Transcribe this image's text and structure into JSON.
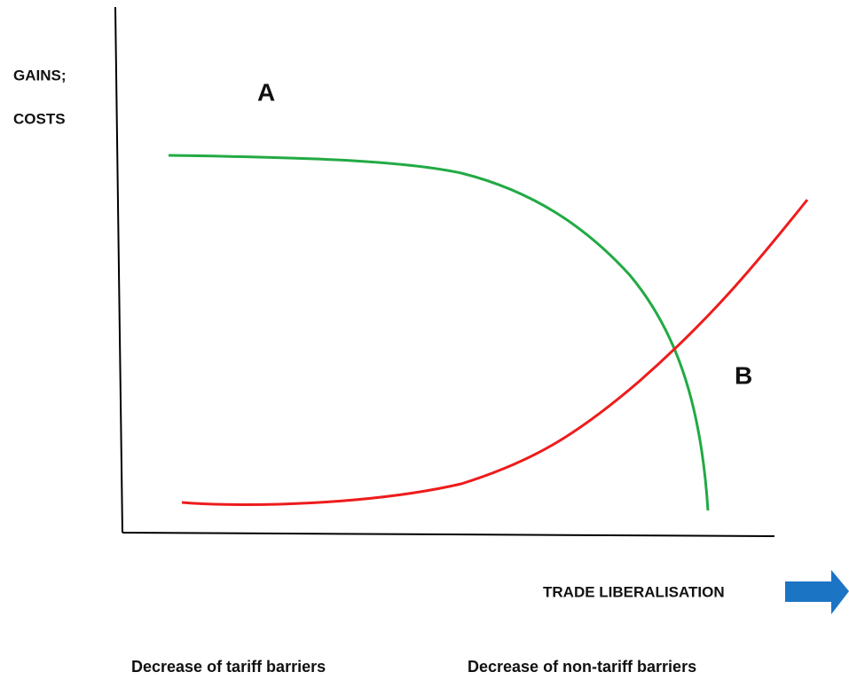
{
  "y_axis_label": {
    "line1": "GAINS;",
    "line2": "COSTS"
  },
  "region_labels": {
    "a": "A",
    "b": "B"
  },
  "x_axis_label": "TRADE LIBERALISATION",
  "phases": [
    "Decrease of tariff barriers",
    "Decrease of non-tariff barriers"
  ]
}
